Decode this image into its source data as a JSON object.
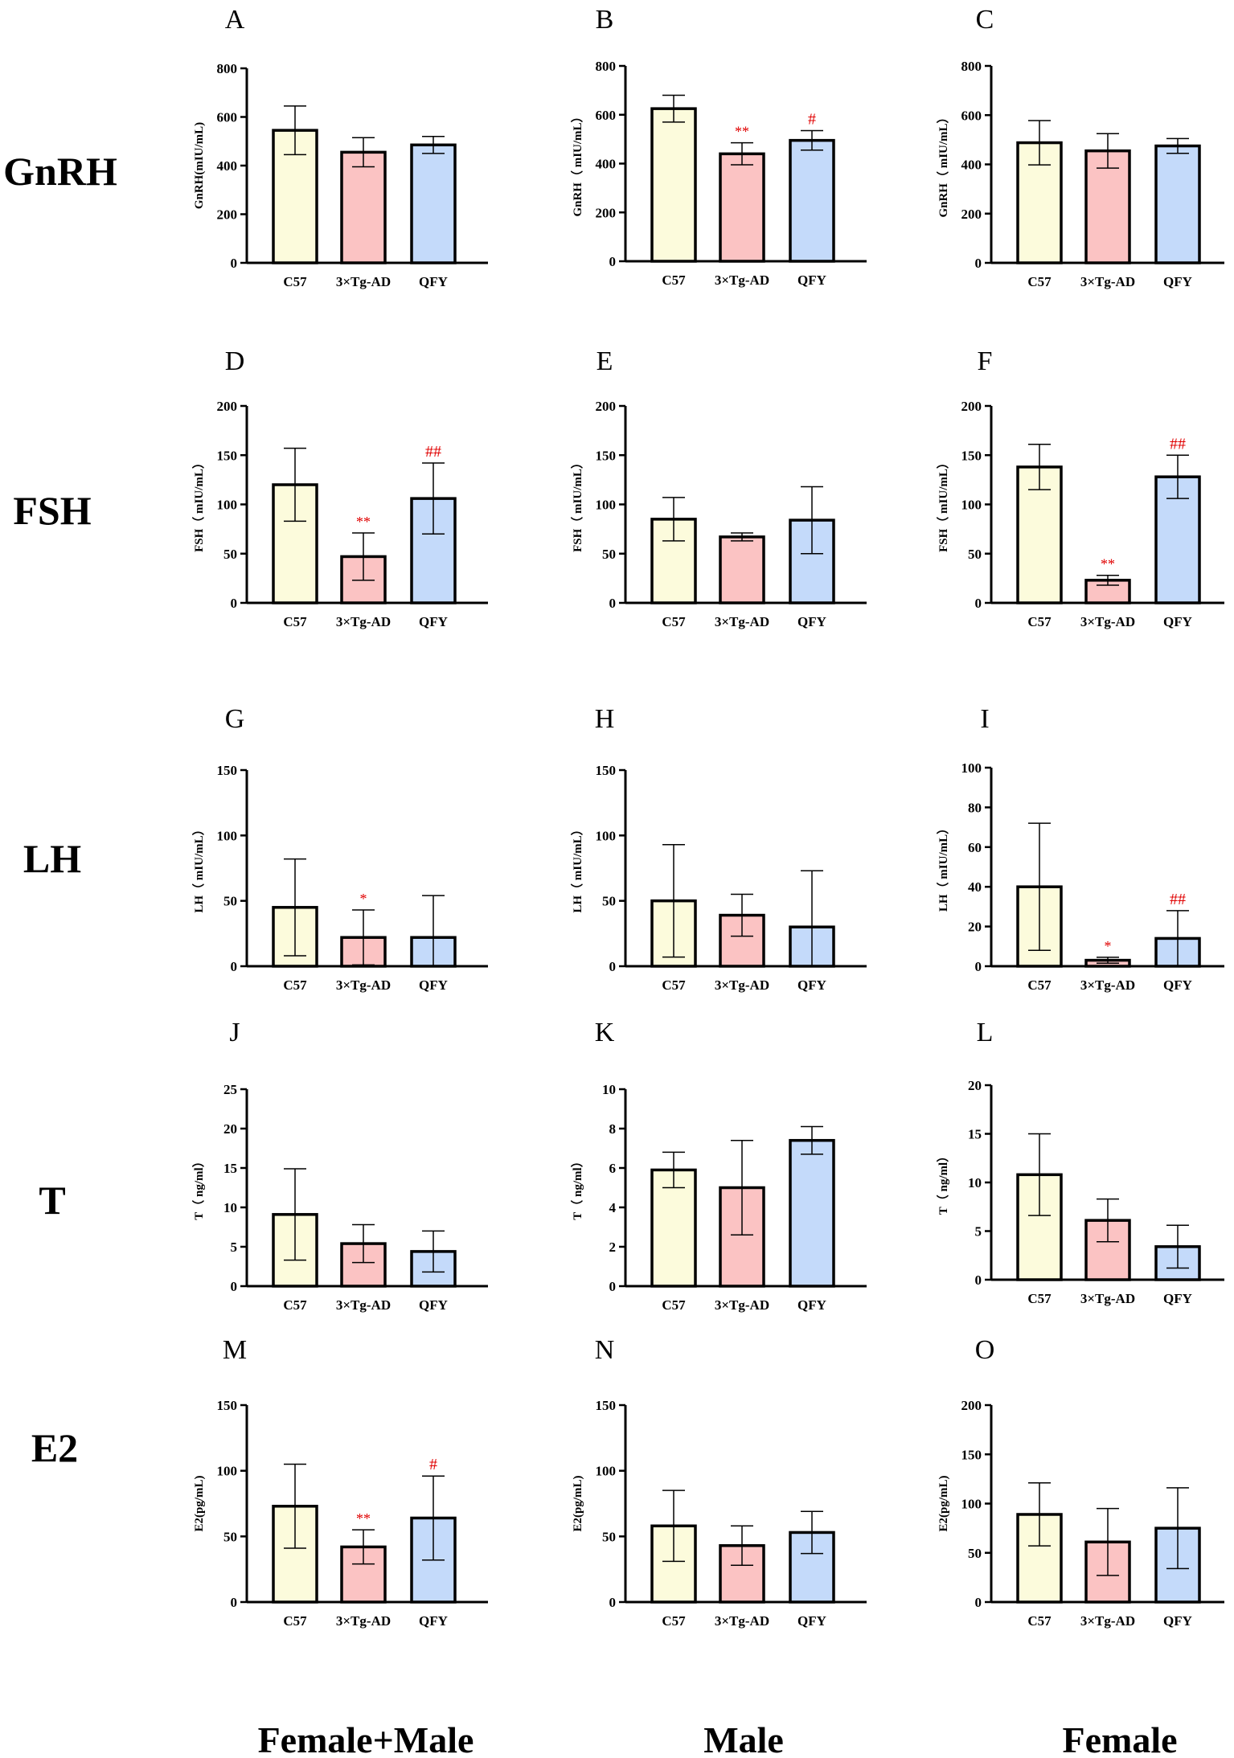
{
  "row_labels": [
    "GnRH",
    "FSH",
    "LH",
    "T",
    "E2"
  ],
  "column_labels": [
    "Female+Male",
    "Male",
    "Female"
  ],
  "colors": {
    "C57": "#fcfbdc",
    "3×Tg-AD": "#fbc3c3",
    "QFY": "#c4dafa",
    "significance": "#e00000",
    "axis": "#000000"
  },
  "chart_data": [
    {
      "panel": "A",
      "type": "bar",
      "ylabel": "GnRH(mIU/mL)",
      "ylim": [
        0,
        800
      ],
      "yticks": [
        0,
        200,
        400,
        600,
        800
      ],
      "categories": [
        "C57",
        "3×Tg-AD",
        "QFY"
      ],
      "values": [
        545,
        455,
        485
      ],
      "errors": [
        100,
        60,
        35
      ],
      "annotations": [
        "",
        "",
        ""
      ]
    },
    {
      "panel": "B",
      "type": "bar",
      "ylabel": "GnRH（ mIU/mL）",
      "ylim": [
        0,
        800
      ],
      "yticks": [
        0,
        200,
        400,
        600,
        800
      ],
      "categories": [
        "C57",
        "3×Tg-AD",
        "QFY"
      ],
      "values": [
        625,
        440,
        495
      ],
      "errors": [
        55,
        45,
        40
      ],
      "annotations": [
        "",
        "**",
        "#"
      ]
    },
    {
      "panel": "C",
      "type": "bar",
      "ylabel": "GnRH（ mIU/mL）",
      "ylim": [
        0,
        800
      ],
      "yticks": [
        0,
        200,
        400,
        600,
        800
      ],
      "categories": [
        "C57",
        "3×Tg-AD",
        "QFY"
      ],
      "values": [
        488,
        455,
        475
      ],
      "errors": [
        90,
        70,
        30
      ],
      "annotations": [
        "",
        "",
        ""
      ]
    },
    {
      "panel": "D",
      "type": "bar",
      "ylabel": "FSH（ mIU/mL）",
      "ylim": [
        0,
        200
      ],
      "yticks": [
        0,
        50,
        100,
        150,
        200
      ],
      "categories": [
        "C57",
        "3×Tg-AD",
        "QFY"
      ],
      "values": [
        120,
        47,
        106
      ],
      "errors": [
        37,
        24,
        36
      ],
      "annotations": [
        "",
        "**",
        "##"
      ]
    },
    {
      "panel": "E",
      "type": "bar",
      "ylabel": "FSH（ mIU/mL）",
      "ylim": [
        0,
        200
      ],
      "yticks": [
        0,
        50,
        100,
        150,
        200
      ],
      "categories": [
        "C57",
        "3×Tg-AD",
        "QFY"
      ],
      "values": [
        85,
        67,
        84
      ],
      "errors": [
        22,
        4,
        34
      ],
      "annotations": [
        "",
        "",
        ""
      ]
    },
    {
      "panel": "F",
      "type": "bar",
      "ylabel": "FSH（ mIU/mL）",
      "ylim": [
        0,
        200
      ],
      "yticks": [
        0,
        50,
        100,
        150,
        200
      ],
      "categories": [
        "C57",
        "3×Tg-AD",
        "QFY"
      ],
      "values": [
        138,
        23,
        128
      ],
      "errors": [
        23,
        5,
        22
      ],
      "annotations": [
        "",
        "**",
        "##"
      ]
    },
    {
      "panel": "G",
      "type": "bar",
      "ylabel": "LH（ mIU/mL）",
      "ylim": [
        0,
        150
      ],
      "yticks": [
        0,
        50,
        100,
        150
      ],
      "categories": [
        "C57",
        "3×Tg-AD",
        "QFY"
      ],
      "values": [
        45,
        22,
        22
      ],
      "errors": [
        37,
        21,
        32
      ],
      "annotations": [
        "",
        "*",
        ""
      ]
    },
    {
      "panel": "H",
      "type": "bar",
      "ylabel": "LH（ mIU/mL）",
      "ylim": [
        0,
        150
      ],
      "yticks": [
        0,
        50,
        100,
        150
      ],
      "categories": [
        "C57",
        "3×Tg-AD",
        "QFY"
      ],
      "values": [
        50,
        39,
        30
      ],
      "errors": [
        43,
        16,
        43
      ],
      "annotations": [
        "",
        "",
        ""
      ]
    },
    {
      "panel": "I",
      "type": "bar",
      "ylabel": "LH（ mIU/mL）",
      "ylim": [
        0,
        100
      ],
      "yticks": [
        0,
        20,
        40,
        60,
        80,
        100
      ],
      "categories": [
        "C57",
        "3×Tg-AD",
        "QFY"
      ],
      "values": [
        40,
        3,
        14
      ],
      "errors": [
        32,
        1.5,
        14
      ],
      "annotations": [
        "",
        "*",
        "##"
      ]
    },
    {
      "panel": "J",
      "type": "bar",
      "ylabel": "T（ ng/ml）",
      "ylim": [
        0,
        25
      ],
      "yticks": [
        0,
        5,
        10,
        15,
        20,
        25
      ],
      "categories": [
        "C57",
        "3×Tg-AD",
        "QFY"
      ],
      "values": [
        9.1,
        5.4,
        4.4
      ],
      "errors": [
        5.8,
        2.4,
        2.6
      ],
      "annotations": [
        "",
        "",
        ""
      ]
    },
    {
      "panel": "K",
      "type": "bar",
      "ylabel": "T（ ng/ml）",
      "ylim": [
        0,
        10
      ],
      "yticks": [
        0,
        2,
        4,
        6,
        8,
        10
      ],
      "categories": [
        "C57",
        "3×Tg-AD",
        "QFY"
      ],
      "values": [
        5.9,
        5.0,
        7.4
      ],
      "errors": [
        0.9,
        2.4,
        0.7
      ],
      "annotations": [
        "",
        "",
        ""
      ]
    },
    {
      "panel": "L",
      "type": "bar",
      "ylabel": "T（ ng/ml）",
      "ylim": [
        0,
        20
      ],
      "yticks": [
        0,
        5,
        10,
        15,
        20
      ],
      "categories": [
        "C57",
        "3×Tg-AD",
        "QFY"
      ],
      "values": [
        10.8,
        6.1,
        3.4
      ],
      "errors": [
        4.2,
        2.2,
        2.2
      ],
      "annotations": [
        "",
        "",
        ""
      ]
    },
    {
      "panel": "M",
      "type": "bar",
      "ylabel": "E2(pg/mL)",
      "ylim": [
        0,
        150
      ],
      "yticks": [
        0,
        50,
        100,
        150
      ],
      "categories": [
        "C57",
        "3×Tg-AD",
        "QFY"
      ],
      "values": [
        73,
        42,
        64
      ],
      "errors": [
        32,
        13,
        32
      ],
      "annotations": [
        "",
        "**",
        "#"
      ]
    },
    {
      "panel": "N",
      "type": "bar",
      "ylabel": "E2(pg/mL)",
      "ylim": [
        0,
        150
      ],
      "yticks": [
        0,
        50,
        100,
        150
      ],
      "categories": [
        "C57",
        "3×Tg-AD",
        "QFY"
      ],
      "values": [
        58,
        43,
        53
      ],
      "errors": [
        27,
        15,
        16
      ],
      "annotations": [
        "",
        "",
        ""
      ]
    },
    {
      "panel": "O",
      "type": "bar",
      "ylabel": "E2(pg/mL)",
      "ylim": [
        0,
        200
      ],
      "yticks": [
        0,
        50,
        100,
        150,
        200
      ],
      "categories": [
        "C57",
        "3×Tg-AD",
        "QFY"
      ],
      "values": [
        89,
        61,
        75
      ],
      "errors": [
        32,
        34,
        41
      ],
      "annotations": [
        "",
        "",
        ""
      ]
    }
  ]
}
